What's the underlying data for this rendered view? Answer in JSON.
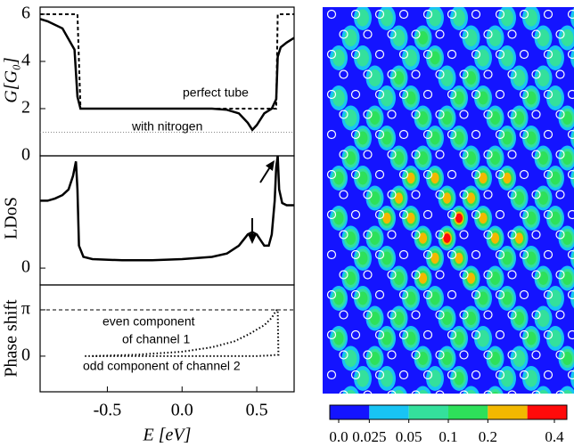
{
  "chart_data": [
    {
      "type": "line",
      "ylabel": "G[G₀]",
      "xlim": [
        -0.95,
        0.75
      ],
      "ylim": [
        0,
        6.3
      ],
      "yticks": [
        0,
        2,
        4,
        6
      ],
      "reference_line": 1,
      "annotations": [
        "perfect tube",
        "with nitrogen"
      ],
      "series": [
        {
          "style": "dashed",
          "color": "#000000",
          "x": [
            -0.95,
            -0.9,
            -0.8,
            -0.72,
            -0.7,
            -0.68,
            -0.6,
            -0.3,
            0,
            0.3,
            0.6,
            0.63,
            0.64,
            0.66,
            0.7,
            0.75
          ],
          "values": [
            6,
            6,
            6,
            6,
            6,
            2,
            2,
            2,
            2,
            2,
            2,
            2,
            6,
            6,
            6,
            6
          ]
        },
        {
          "style": "solid",
          "color": "#000000",
          "x": [
            -0.95,
            -0.9,
            -0.8,
            -0.72,
            -0.7,
            -0.68,
            -0.6,
            -0.3,
            0,
            0.2,
            0.3,
            0.38,
            0.44,
            0.47,
            0.5,
            0.55,
            0.6,
            0.63,
            0.64,
            0.66,
            0.7,
            0.75
          ],
          "values": [
            5.8,
            5.7,
            5.4,
            4.5,
            2.5,
            2,
            2,
            2,
            2,
            2,
            1.95,
            1.8,
            1.4,
            1.1,
            1.3,
            1.8,
            2,
            2.4,
            4.2,
            4.6,
            4.8,
            5
          ]
        }
      ]
    },
    {
      "type": "line",
      "ylabel": "LDoS",
      "xlim": [
        -0.95,
        0.75
      ],
      "ylim": [
        -0.15,
        1.0
      ],
      "yticks": [
        0
      ],
      "series": [
        {
          "style": "solid",
          "color": "#000000",
          "x": [
            -0.95,
            -0.9,
            -0.85,
            -0.8,
            -0.76,
            -0.73,
            -0.71,
            -0.7,
            -0.69,
            -0.66,
            -0.6,
            -0.4,
            -0.2,
            0,
            0.2,
            0.3,
            0.38,
            0.44,
            0.47,
            0.5,
            0.55,
            0.58,
            0.6,
            0.62,
            0.63,
            0.64,
            0.65,
            0.67,
            0.7,
            0.75
          ],
          "values": [
            0.6,
            0.6,
            0.62,
            0.65,
            0.7,
            0.82,
            0.95,
            0.7,
            0.2,
            0.1,
            0.08,
            0.07,
            0.07,
            0.08,
            0.1,
            0.13,
            0.2,
            0.3,
            0.32,
            0.3,
            0.2,
            0.2,
            0.3,
            0.6,
            0.9,
            1.0,
            0.7,
            0.58,
            0.56,
            0.56
          ]
        }
      ]
    },
    {
      "type": "line",
      "ylabel": "Phase shift",
      "xlabel": "E [eV]",
      "xlim": [
        -0.95,
        0.75
      ],
      "ylim": [
        -2.42,
        4.83
      ],
      "xticks": [
        -0.5,
        {
          "value": 0,
          "label": "0.0"
        },
        0.5
      ],
      "yticks": [
        {
          "value": 3.14159,
          "label": "π"
        },
        0
      ],
      "reference_line": 3.14159,
      "annotations": [
        "even component",
        "of channel 1",
        "odd component of channel 2"
      ],
      "series": [
        {
          "style": "dotted",
          "color": "#000000",
          "x": [
            -0.6,
            -0.3,
            0,
            0.2,
            0.35,
            0.45,
            0.55,
            0.6,
            0.63,
            0.64,
            0.645
          ],
          "values": [
            0,
            0.1,
            0.3,
            0.6,
            1.0,
            1.5,
            2.1,
            2.6,
            3.1,
            3.14,
            0
          ]
        },
        {
          "style": "dotted",
          "color": "#000000",
          "x": [
            -0.65,
            -0.3,
            0,
            0.3,
            0.5,
            0.6,
            0.64
          ],
          "values": [
            0,
            0,
            0,
            0,
            0,
            0.05,
            0.1
          ]
        }
      ]
    },
    {
      "type": "heatmap",
      "colorbar": {
        "ticks": [
          {
            "value": 0,
            "label": "0.0"
          },
          0.025,
          0.05,
          0.1,
          0.2,
          0.4
        ],
        "colors": [
          "#1414ff",
          "#18c4f4",
          "#34e09c",
          "#2ee05a",
          "#f2b800",
          "#ff0a0a"
        ]
      }
    }
  ]
}
